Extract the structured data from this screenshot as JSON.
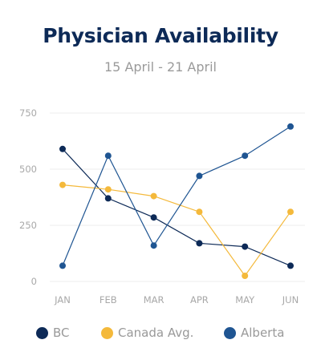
{
  "chart_data": {
    "type": "line",
    "title": "Physician Availability",
    "subtitle": "15 April - 21 April",
    "xlabel": "",
    "ylabel": "",
    "categories": [
      "JAN",
      "FEB",
      "MAR",
      "APR",
      "MAY",
      "JUN"
    ],
    "ylim": [
      0,
      750
    ],
    "yticks": [
      0,
      250,
      500,
      750
    ],
    "ytick_labels": [
      "0",
      "250",
      "500",
      "750"
    ],
    "grid": true,
    "legend_position": "bottom",
    "series": [
      {
        "name": "BC",
        "color": "#0d2a57",
        "values": [
          590,
          370,
          285,
          170,
          155,
          70
        ]
      },
      {
        "name": "Canada Avg.",
        "color": "#f4b93b",
        "values": [
          430,
          410,
          380,
          310,
          25,
          310
        ]
      },
      {
        "name": "Alberta",
        "color": "#1f5592",
        "values": [
          70,
          560,
          160,
          470,
          560,
          690
        ]
      }
    ]
  }
}
